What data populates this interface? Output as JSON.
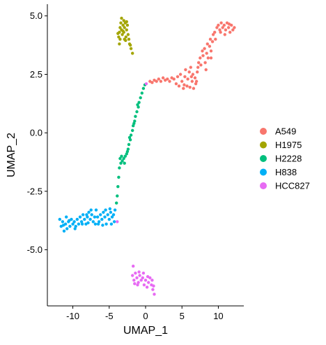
{
  "chart_data": {
    "type": "scatter",
    "xlabel": "UMAP_1",
    "ylabel": "UMAP_2",
    "xlim": [
      -13.5,
      13.5
    ],
    "ylim": [
      -7.4,
      5.5
    ],
    "x_ticks": [
      -10,
      -5,
      0,
      5,
      10
    ],
    "y_ticks": [
      -5.0,
      -2.5,
      0.0,
      2.5,
      5.0
    ],
    "x_tick_labels": [
      "-10",
      "-5",
      "0",
      "5",
      "10"
    ],
    "y_tick_labels": [
      "-5.0",
      "-2.5",
      "0.0",
      "2.5",
      "5.0"
    ],
    "grid": false,
    "legend_position": "right",
    "series": [
      {
        "name": "A549",
        "color": "#F8766D",
        "points": [
          [
            0.6,
            2.2
          ],
          [
            0.9,
            2.15
          ],
          [
            1.2,
            2.25
          ],
          [
            1.5,
            2.2
          ],
          [
            1.8,
            2.3
          ],
          [
            2.1,
            2.2
          ],
          [
            2.4,
            2.35
          ],
          [
            2.7,
            2.25
          ],
          [
            3.0,
            2.3
          ],
          [
            3.3,
            2.2
          ],
          [
            3.6,
            2.35
          ],
          [
            3.9,
            2.3
          ],
          [
            4.2,
            2.1
          ],
          [
            4.4,
            2.4
          ],
          [
            4.6,
            2.0
          ],
          [
            4.8,
            2.5
          ],
          [
            5.0,
            2.2
          ],
          [
            5.2,
            1.9
          ],
          [
            5.4,
            2.4
          ],
          [
            5.5,
            2.7
          ],
          [
            5.7,
            2.0
          ],
          [
            5.8,
            2.3
          ],
          [
            6.0,
            2.6
          ],
          [
            6.1,
            1.95
          ],
          [
            6.2,
            2.8
          ],
          [
            6.4,
            2.2
          ],
          [
            6.5,
            2.5
          ],
          [
            6.6,
            1.9
          ],
          [
            6.8,
            2.35
          ],
          [
            6.9,
            2.1
          ],
          [
            7.1,
            2.6
          ],
          [
            7.2,
            2.8
          ],
          [
            7.3,
            3.0
          ],
          [
            7.5,
            3.2
          ],
          [
            7.6,
            2.9
          ],
          [
            7.8,
            3.5
          ],
          [
            7.9,
            3.3
          ],
          [
            8.1,
            3.6
          ],
          [
            8.2,
            3.0
          ],
          [
            8.4,
            3.4
          ],
          [
            8.5,
            3.8
          ],
          [
            8.6,
            3.2
          ],
          [
            8.8,
            3.7
          ],
          [
            8.9,
            4.0
          ],
          [
            9.0,
            3.5
          ],
          [
            9.2,
            3.9
          ],
          [
            9.3,
            4.2
          ],
          [
            9.5,
            4.3
          ],
          [
            9.6,
            4.0
          ],
          [
            9.8,
            4.5
          ],
          [
            10.0,
            4.6
          ],
          [
            10.2,
            4.4
          ],
          [
            10.4,
            4.7
          ],
          [
            10.6,
            4.5
          ],
          [
            10.8,
            4.6
          ],
          [
            11.0,
            4.4
          ],
          [
            11.2,
            4.7
          ],
          [
            11.4,
            4.5
          ],
          [
            11.6,
            4.3
          ],
          [
            11.8,
            4.6
          ],
          [
            12.0,
            4.4
          ],
          [
            12.2,
            4.5
          ],
          [
            10.3,
            4.3
          ],
          [
            10.9,
            4.2
          ],
          [
            11.5,
            4.65
          ],
          [
            9.0,
            3.2
          ],
          [
            8.3,
            2.7
          ],
          [
            7.0,
            2.2
          ],
          [
            6.3,
            2.4
          ],
          [
            5.3,
            2.05
          ]
        ]
      },
      {
        "name": "H1975",
        "color": "#A3A500",
        "points": [
          [
            -3.7,
            4.1
          ],
          [
            -3.6,
            4.3
          ],
          [
            -3.5,
            4.5
          ],
          [
            -3.5,
            4.0
          ],
          [
            -3.4,
            4.7
          ],
          [
            -3.3,
            4.4
          ],
          [
            -3.2,
            4.2
          ],
          [
            -3.1,
            4.6
          ],
          [
            -3.0,
            4.8
          ],
          [
            -3.0,
            4.3
          ],
          [
            -2.9,
            4.5
          ],
          [
            -2.8,
            4.7
          ],
          [
            -2.7,
            4.1
          ],
          [
            -2.6,
            4.4
          ],
          [
            -2.5,
            4.6
          ],
          [
            -2.4,
            4.2
          ],
          [
            -2.3,
            4.0
          ],
          [
            -2.2,
            3.8
          ],
          [
            -2.0,
            3.6
          ],
          [
            -1.8,
            3.4
          ],
          [
            -3.6,
            3.8
          ],
          [
            -3.3,
            4.9
          ],
          [
            -2.9,
            4.0
          ],
          [
            -2.6,
            4.75
          ],
          [
            -3.1,
            4.35
          ],
          [
            -2.1,
            3.75
          ],
          [
            -3.8,
            4.25
          ],
          [
            -2.75,
            3.95
          ]
        ]
      },
      {
        "name": "H2228",
        "color": "#00BF7D",
        "points": [
          [
            -0.1,
            2.05
          ],
          [
            -0.3,
            1.9
          ],
          [
            -0.5,
            1.7
          ],
          [
            -0.7,
            1.5
          ],
          [
            -0.9,
            1.3
          ],
          [
            -1.0,
            1.1
          ],
          [
            -1.2,
            0.9
          ],
          [
            -1.4,
            0.7
          ],
          [
            -1.5,
            0.5
          ],
          [
            -1.7,
            0.3
          ],
          [
            -1.8,
            0.1
          ],
          [
            -2.0,
            -0.1
          ],
          [
            -2.1,
            -0.3
          ],
          [
            -2.3,
            -0.5
          ],
          [
            -2.4,
            -0.7
          ],
          [
            -2.6,
            -0.9
          ],
          [
            -2.8,
            -1.0
          ],
          [
            -3.0,
            -1.1
          ],
          [
            -3.2,
            -1.2
          ],
          [
            -3.4,
            -1.3
          ],
          [
            -3.5,
            -1.1
          ],
          [
            -3.6,
            -1.5
          ],
          [
            -3.7,
            -1.9
          ],
          [
            -3.8,
            -2.3
          ],
          [
            -3.9,
            -2.7
          ],
          [
            -4.0,
            -3.0
          ],
          [
            -2.5,
            -0.8
          ],
          [
            -2.9,
            -1.3
          ],
          [
            -3.3,
            -1.0
          ],
          [
            -1.6,
            0.4
          ],
          [
            -2.2,
            -0.2
          ],
          [
            -1.1,
            1.2
          ]
        ]
      },
      {
        "name": "H838",
        "color": "#00B0F6",
        "points": [
          [
            -11.8,
            -3.7
          ],
          [
            -11.6,
            -4.0
          ],
          [
            -11.4,
            -3.8
          ],
          [
            -11.2,
            -4.2
          ],
          [
            -11.0,
            -3.9
          ],
          [
            -10.8,
            -4.1
          ],
          [
            -10.6,
            -3.8
          ],
          [
            -10.4,
            -4.0
          ],
          [
            -10.2,
            -3.7
          ],
          [
            -10.0,
            -3.9
          ],
          [
            -9.8,
            -3.8
          ],
          [
            -9.6,
            -4.0
          ],
          [
            -9.4,
            -3.7
          ],
          [
            -9.2,
            -3.9
          ],
          [
            -9.0,
            -3.6
          ],
          [
            -8.8,
            -3.8
          ],
          [
            -8.6,
            -3.5
          ],
          [
            -8.4,
            -3.7
          ],
          [
            -8.2,
            -3.9
          ],
          [
            -8.0,
            -3.6
          ],
          [
            -7.8,
            -3.4
          ],
          [
            -7.6,
            -3.7
          ],
          [
            -7.4,
            -3.5
          ],
          [
            -7.2,
            -3.8
          ],
          [
            -7.0,
            -3.6
          ],
          [
            -6.8,
            -3.3
          ],
          [
            -6.6,
            -3.6
          ],
          [
            -6.4,
            -3.8
          ],
          [
            -6.2,
            -3.5
          ],
          [
            -6.0,
            -3.7
          ],
          [
            -5.8,
            -3.4
          ],
          [
            -5.6,
            -3.6
          ],
          [
            -5.4,
            -3.9
          ],
          [
            -5.2,
            -3.5
          ],
          [
            -5.0,
            -3.7
          ],
          [
            -4.8,
            -3.4
          ],
          [
            -4.6,
            -3.6
          ],
          [
            -4.4,
            -3.5
          ],
          [
            -4.3,
            -3.8
          ],
          [
            -4.2,
            -3.3
          ],
          [
            -10.9,
            -3.6
          ],
          [
            -9.7,
            -4.1
          ],
          [
            -8.7,
            -3.9
          ],
          [
            -7.5,
            -3.3
          ],
          [
            -6.5,
            -3.9
          ],
          [
            -5.5,
            -3.3
          ],
          [
            -4.7,
            -3.9
          ],
          [
            -11.3,
            -3.95
          ],
          [
            -8.1,
            -3.5
          ],
          [
            -6.9,
            -3.9
          ],
          [
            -5.9,
            -3.95
          ],
          [
            -4.9,
            -3.25
          ],
          [
            -10.5,
            -3.75
          ],
          [
            -7.9,
            -3.85
          ]
        ]
      },
      {
        "name": "HCC827",
        "color": "#E76BF3",
        "points": [
          [
            -1.7,
            -5.7
          ],
          [
            -1.8,
            -6.1
          ],
          [
            -1.6,
            -6.3
          ],
          [
            -1.4,
            -6.0
          ],
          [
            -1.2,
            -6.2
          ],
          [
            -1.0,
            -6.4
          ],
          [
            -0.8,
            -6.1
          ],
          [
            -0.6,
            -6.3
          ],
          [
            -0.4,
            -6.2
          ],
          [
            -0.2,
            -6.5
          ],
          [
            0.0,
            -6.3
          ],
          [
            0.2,
            -6.6
          ],
          [
            0.4,
            -6.4
          ],
          [
            0.6,
            -6.2
          ],
          [
            0.8,
            -6.5
          ],
          [
            1.0,
            -6.7
          ],
          [
            1.2,
            -6.9
          ],
          [
            -1.5,
            -6.45
          ],
          [
            -0.9,
            -5.95
          ],
          [
            -0.3,
            -6.0
          ],
          [
            0.3,
            -6.15
          ],
          [
            0.9,
            -6.3
          ],
          [
            1.1,
            -6.55
          ],
          [
            -1.1,
            -6.5
          ],
          [
            0.1,
            2.1
          ],
          [
            -3.9,
            -3.8
          ]
        ]
      }
    ]
  }
}
